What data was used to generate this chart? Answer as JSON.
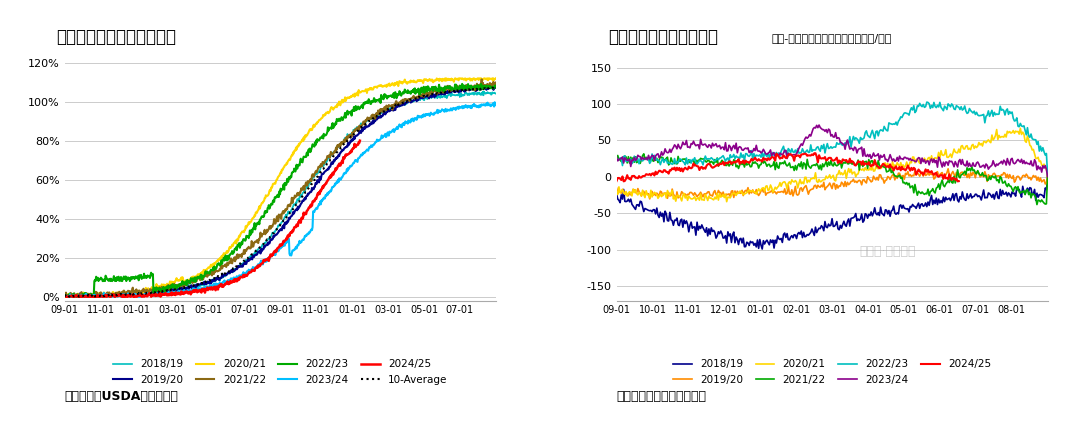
{
  "chart1_title": "图：美豆出口销售进度情况",
  "chart1_xlabel_ticks": [
    "09-01",
    "11-01",
    "01-01",
    "03-01",
    "05-01",
    "07-01",
    "09-01",
    "11-01",
    "01-01",
    "03-01",
    "05-01",
    "07-01"
  ],
  "chart1_yticks": [
    "0%",
    "20%",
    "40%",
    "60%",
    "80%",
    "100%",
    "120%"
  ],
  "chart1_ylim": [
    -0.02,
    1.25
  ],
  "chart1_source": "数据来源：USDA，国富期货",
  "chart1_series": {
    "2018/19": {
      "color": "#00BFBF",
      "lw": 1.2
    },
    "2019/20": {
      "color": "#00008B",
      "lw": 1.5
    },
    "2020/21": {
      "color": "#FFD700",
      "lw": 1.5
    },
    "2021/22": {
      "color": "#8B6914",
      "lw": 1.5
    },
    "2022/23": {
      "color": "#00AA00",
      "lw": 1.5
    },
    "2023/24": {
      "color": "#00BFFF",
      "lw": 1.5
    },
    "2024/25": {
      "color": "#FF0000",
      "lw": 1.8
    },
    "10-Average": {
      "color": "#000000",
      "lw": 1.5,
      "ls": "dotted"
    }
  },
  "chart2_title": "图：美豆性价比逐渐丧失",
  "chart2_subtitle": "美湾-帕拉纳瓜港口大豆价差（美元/吨）",
  "chart2_xlabel_ticks": [
    "09-01",
    "10-01",
    "11-01",
    "12-01",
    "01-01",
    "02-01",
    "03-01",
    "04-01",
    "05-01",
    "06-01",
    "07-01",
    "08-01"
  ],
  "chart2_yticks": [
    -150,
    -100,
    -50,
    0,
    50,
    100,
    150
  ],
  "chart2_ylim": [
    -170,
    170
  ],
  "chart2_source": "数据来源：路透，国富期货",
  "chart2_series": {
    "2018/19": {
      "color": "#00008B",
      "lw": 1.2
    },
    "2019/20": {
      "color": "#FF8C00",
      "lw": 1.2
    },
    "2020/21": {
      "color": "#FFD700",
      "lw": 1.2
    },
    "2021/22": {
      "color": "#00AA00",
      "lw": 1.2
    },
    "2022/23": {
      "color": "#00BFBF",
      "lw": 1.2
    },
    "2023/24": {
      "color": "#8B008B",
      "lw": 1.2
    },
    "2024/25": {
      "color": "#FF0000",
      "lw": 1.5
    }
  },
  "background_color": "#FFFFFF",
  "grid_color": "#CCCCCC"
}
